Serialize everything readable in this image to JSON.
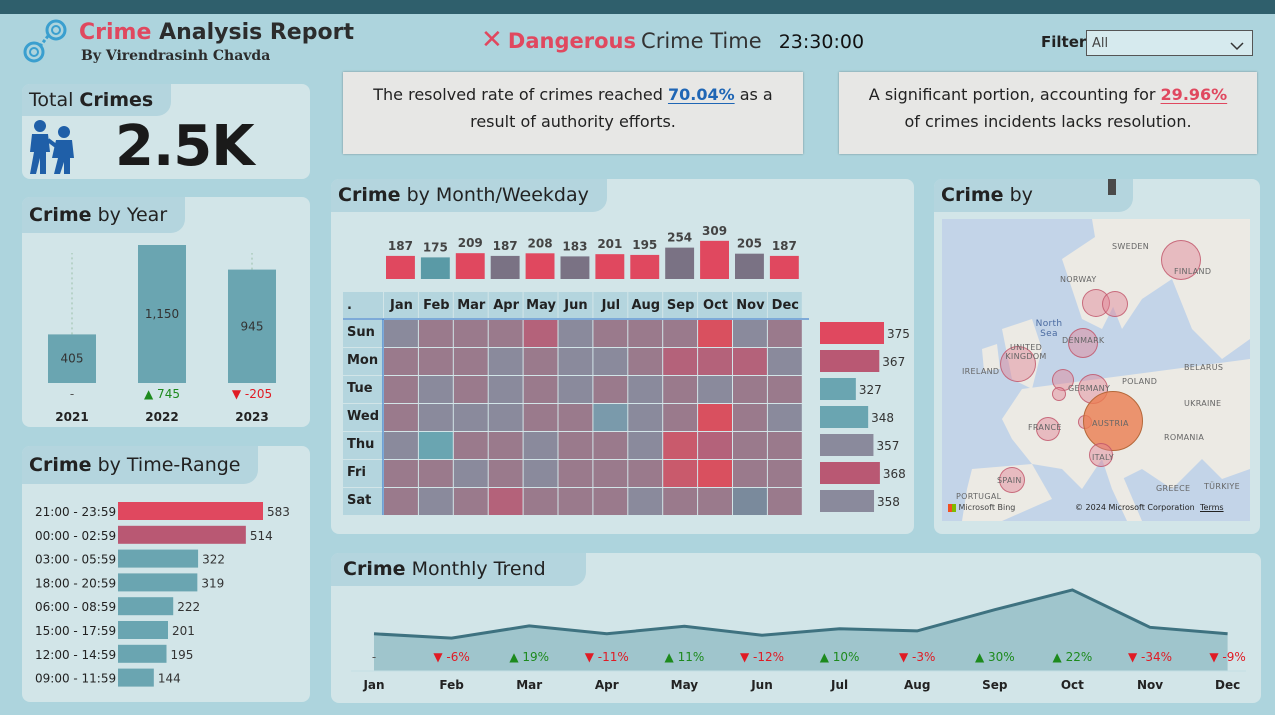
{
  "header": {
    "title_accent": "Crime",
    "title_rest": "Analysis Report",
    "byline": "By Virendrasinh Chavda",
    "danger_word": "Dangerous",
    "danger_rest": "Crime Time",
    "danger_time": "23:30:00",
    "filter_label": "Filter",
    "filter_value": "All"
  },
  "total": {
    "label_plain": "Total",
    "label_bold": "Crimes",
    "value": "2.5K"
  },
  "insights": {
    "resolved_pre": "The resolved rate of crimes reached",
    "resolved_pct": "70.04%",
    "resolved_post": "as a",
    "resolved_line2": "result of authority efforts.",
    "unresolved_pre": "A significant portion, accounting for",
    "unresolved_pct": "29.96%",
    "unresolved_line2": "of crimes incidents lacks resolution."
  },
  "year": {
    "title_bold": "Crime",
    "title_rest": "by Year",
    "years": [
      "2021",
      "2022",
      "2023"
    ],
    "values": [
      405,
      1150,
      945
    ],
    "value_labels": [
      "405",
      "1,150",
      "945"
    ],
    "delta_labels": [
      "-",
      "▲ 745",
      "▼ -205"
    ],
    "delta_dir": [
      "none",
      "up",
      "down"
    ]
  },
  "timerange": {
    "title_bold": "Crime",
    "title_rest": "by Time-Range",
    "rows": [
      {
        "label": "21:00 - 23:59",
        "value": 583,
        "color": "#e0485f"
      },
      {
        "label": "00:00 - 02:59",
        "value": 514,
        "color": "#b95873"
      },
      {
        "label": "03:00 - 05:59",
        "value": 322,
        "color": "#6aa5b1"
      },
      {
        "label": "18:00 - 20:59",
        "value": 319,
        "color": "#6aa5b1"
      },
      {
        "label": "06:00 - 08:59",
        "value": 222,
        "color": "#6aa5b1"
      },
      {
        "label": "15:00 - 17:59",
        "value": 201,
        "color": "#6aa5b1"
      },
      {
        "label": "12:00 - 14:59",
        "value": 195,
        "color": "#6aa5b1"
      },
      {
        "label": "09:00 - 11:59",
        "value": 144,
        "color": "#6aa5b1"
      }
    ]
  },
  "month": {
    "title_bold": "Crime",
    "title_rest": "by Month/Weekday",
    "corner": ".",
    "months": [
      "Jan",
      "Feb",
      "Mar",
      "Apr",
      "May",
      "Jun",
      "Jul",
      "Aug",
      "Sep",
      "Oct",
      "Nov",
      "Dec"
    ],
    "month_totals": [
      187,
      175,
      209,
      187,
      208,
      183,
      201,
      195,
      254,
      309,
      205,
      187
    ],
    "month_colors": [
      "#e0485f",
      "#5a9aa6",
      "#e0485f",
      "#7a7284",
      "#e0485f",
      "#7a7284",
      "#e0485f",
      "#e0485f",
      "#7a7284",
      "#e0485f",
      "#7a7284",
      "#e0485f"
    ],
    "weekdays": [
      "Sun",
      "Mon",
      "Tue",
      "Wed",
      "Thu",
      "Fri",
      "Sat"
    ],
    "weekday_totals": [
      375,
      367,
      327,
      348,
      357,
      368,
      358
    ],
    "weekday_colors": [
      "#e0485f",
      "#b95873",
      "#6aa5b1",
      "#6aa5b1",
      "#8a8a9c",
      "#b95873",
      "#8a8a9c"
    ],
    "heat_colors": [
      [
        "#8a8a9c",
        "#9a7a8c",
        "#9a7a8c",
        "#9a7a8c",
        "#b4627a",
        "#8a8a9c",
        "#9a7a8c",
        "#9a7a8c",
        "#9a7a8c",
        "#d9505f",
        "#8a8a9c",
        "#9a7a8c"
      ],
      [
        "#9a7a8c",
        "#9a7a8c",
        "#9a7a8c",
        "#8a8a9c",
        "#9a7a8c",
        "#8a8a9c",
        "#8a8a9c",
        "#9a7a8c",
        "#b4627a",
        "#b4627a",
        "#b4627a",
        "#8a8a9c"
      ],
      [
        "#9a7a8c",
        "#8a8a9c",
        "#9a7a8c",
        "#8a8a9c",
        "#9a7a8c",
        "#8a8a9c",
        "#9a7a8c",
        "#8a8a9c",
        "#9a7a8c",
        "#8a8a9c",
        "#9a7a8c",
        "#9a7a8c"
      ],
      [
        "#9a7a8c",
        "#8a8a9c",
        "#8a8a9c",
        "#8a8a9c",
        "#9a7a8c",
        "#9a7a8c",
        "#7a9aab",
        "#8a8a9c",
        "#9a7a8c",
        "#d9505f",
        "#9a7a8c",
        "#8a8a9c"
      ],
      [
        "#8a8a9c",
        "#6aa5b1",
        "#9a7a8c",
        "#9a7a8c",
        "#8a8a9c",
        "#9a7a8c",
        "#9a7a8c",
        "#8a8a9c",
        "#c95a6c",
        "#b4627a",
        "#9a7a8c",
        "#9a7a8c"
      ],
      [
        "#9a7a8c",
        "#9a7a8c",
        "#8a8a9c",
        "#9a7a8c",
        "#8a8a9c",
        "#9a7a8c",
        "#9a7a8c",
        "#9a7a8c",
        "#c95a6c",
        "#d9505f",
        "#9a7a8c",
        "#9a7a8c"
      ],
      [
        "#9a7a8c",
        "#8a8a9c",
        "#9a7a8c",
        "#b4627a",
        "#9a7a8c",
        "#9a7a8c",
        "#9a7a8c",
        "#8a8a9c",
        "#9a7a8c",
        "#9a7a8c",
        "#7a8a9c",
        "#9a7a8c"
      ]
    ]
  },
  "map": {
    "title_bold": "Crime",
    "title_rest": "by",
    "labels": [
      "SWEDEN",
      "NORWAY",
      "FINLAND",
      "North Sea",
      "DENMARK",
      "UNITED KINGDOM",
      "IRELAND",
      "GERMANY",
      "POLAND",
      "BELARUS",
      "UKRAINE",
      "FRANCE",
      "AUSTRIA",
      "ROMANIA",
      "ITALY",
      "SPAIN",
      "PORTUGAL",
      "GREECE",
      "TÜRKIYE"
    ],
    "bing": "Microsoft Bing",
    "copyright": "© 2024 Microsoft Corporation",
    "terms": "Terms"
  },
  "trend": {
    "title_bold": "Crime",
    "title_rest": "Monthly Trend",
    "months": [
      "Jan",
      "Feb",
      "Mar",
      "Apr",
      "May",
      "Jun",
      "Jul",
      "Aug",
      "Sep",
      "Oct",
      "Nov",
      "Dec"
    ],
    "values": [
      187,
      175,
      209,
      187,
      208,
      183,
      201,
      195,
      254,
      309,
      205,
      187
    ],
    "mom_labels": [
      "-",
      "▼ -6%",
      "▲ 19%",
      "▼ -11%",
      "▲ 11%",
      "▼ -12%",
      "▲ 10%",
      "▼ -3%",
      "▲ 30%",
      "▲ 22%",
      "▼ -34%",
      "▼ -9%"
    ],
    "mom_dir": [
      "none",
      "down",
      "up",
      "down",
      "up",
      "down",
      "up",
      "down",
      "up",
      "up",
      "down",
      "down"
    ]
  },
  "colors": {
    "red": "#e0485f",
    "teal": "#6aa5b1",
    "green": "#1d8a1d",
    "down": "#e01b24",
    "blue": "#1f66b5"
  },
  "chart_data": [
    {
      "type": "bar",
      "title": "Crime by Year",
      "categories": [
        "2021",
        "2022",
        "2023"
      ],
      "values": [
        405,
        1150,
        945
      ]
    },
    {
      "type": "bar",
      "title": "Crime by Time-Range",
      "categories": [
        "21:00 - 23:59",
        "00:00 - 02:59",
        "03:00 - 05:59",
        "18:00 - 20:59",
        "06:00 - 08:59",
        "15:00 - 17:59",
        "12:00 - 14:59",
        "09:00 - 11:59"
      ],
      "values": [
        583,
        514,
        322,
        319,
        222,
        201,
        195,
        144
      ]
    },
    {
      "type": "bar",
      "title": "Crime by Month/Weekday",
      "categories": [
        "Jan",
        "Feb",
        "Mar",
        "Apr",
        "May",
        "Jun",
        "Jul",
        "Aug",
        "Sep",
        "Oct",
        "Nov",
        "Dec"
      ],
      "values": [
        187,
        175,
        209,
        187,
        208,
        183,
        201,
        195,
        254,
        309,
        205,
        187
      ]
    },
    {
      "type": "bar",
      "title": "Crime by Month/Weekday",
      "categories": [
        "Sun",
        "Mon",
        "Tue",
        "Wed",
        "Thu",
        "Fri",
        "Sat"
      ],
      "values": [
        375,
        367,
        327,
        348,
        357,
        368,
        358
      ]
    },
    {
      "type": "area",
      "title": "Crime Monthly Trend",
      "x": [
        "Jan",
        "Feb",
        "Mar",
        "Apr",
        "May",
        "Jun",
        "Jul",
        "Aug",
        "Sep",
        "Oct",
        "Nov",
        "Dec"
      ],
      "values": [
        187,
        175,
        209,
        187,
        208,
        183,
        201,
        195,
        254,
        309,
        205,
        187
      ]
    }
  ]
}
